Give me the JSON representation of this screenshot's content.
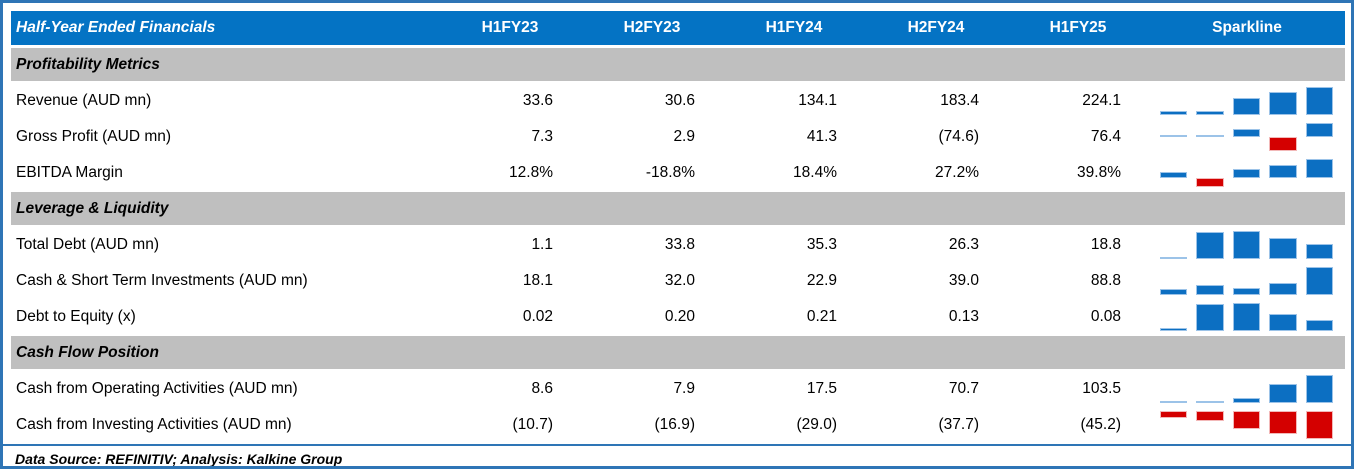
{
  "table": {
    "title": "Half-Year Ended Financials",
    "columns": [
      "H1FY23",
      "H2FY23",
      "H1FY24",
      "H2FY24",
      "H1FY25"
    ],
    "sparkline_header": "Sparkline",
    "sections": [
      {
        "header": "Profitability Metrics",
        "rows": [
          {
            "label": "Revenue (AUD mn)",
            "cells": [
              "33.6",
              "30.6",
              "134.1",
              "183.4",
              "224.1"
            ],
            "values": [
              33.6,
              30.6,
              134.1,
              183.4,
              224.1
            ]
          },
          {
            "label": "Gross Profit (AUD mn)",
            "cells": [
              "7.3",
              "2.9",
              "41.3",
              "(74.6)",
              "76.4"
            ],
            "values": [
              7.3,
              2.9,
              41.3,
              -74.6,
              76.4
            ]
          },
          {
            "label": "EBITDA Margin",
            "cells": [
              "12.8%",
              "-18.8%",
              "18.4%",
              "27.2%",
              "39.8%"
            ],
            "values": [
              12.8,
              -18.8,
              18.4,
              27.2,
              39.8
            ]
          }
        ]
      },
      {
        "header": "Leverage & Liquidity",
        "rows": [
          {
            "label": "Total Debt (AUD mn)",
            "cells": [
              "1.1",
              "33.8",
              "35.3",
              "26.3",
              "18.8"
            ],
            "values": [
              1.1,
              33.8,
              35.3,
              26.3,
              18.8
            ]
          },
          {
            "label": "Cash & Short Term Investments (AUD mn)",
            "cells": [
              "18.1",
              "32.0",
              "22.9",
              "39.0",
              "88.8"
            ],
            "values": [
              18.1,
              32.0,
              22.9,
              39.0,
              88.8
            ]
          },
          {
            "label": "Debt to Equity (x)",
            "cells": [
              "0.02",
              "0.20",
              "0.21",
              "0.13",
              "0.08"
            ],
            "values": [
              0.02,
              0.2,
              0.21,
              0.13,
              0.08
            ]
          }
        ]
      },
      {
        "header": "Cash Flow Position",
        "rows": [
          {
            "label": "Cash from Operating Activities (AUD mn)",
            "cells": [
              "8.6",
              "7.9",
              "17.5",
              "70.7",
              "103.5"
            ],
            "values": [
              8.6,
              7.9,
              17.5,
              70.7,
              103.5
            ]
          },
          {
            "label": "Cash from Investing Activities (AUD mn)",
            "cells": [
              "(10.7)",
              "(16.9)",
              "(29.0)",
              "(37.7)",
              "(45.2)"
            ],
            "values": [
              -10.7,
              -16.9,
              -29.0,
              -37.7,
              -45.2
            ]
          }
        ]
      }
    ]
  },
  "footer": {
    "text": "Data Source: REFINITIV; Analysis: Kalkine Group"
  },
  "colors": {
    "header_blue": "#0473c4",
    "section_gray": "#bfbfbf",
    "frame_border_blue": "#2e75b6",
    "spark_positive_blue": "#0c6fc2",
    "spark_positive_border": "#9cc3e8",
    "spark_negative_red": "#d40000"
  }
}
